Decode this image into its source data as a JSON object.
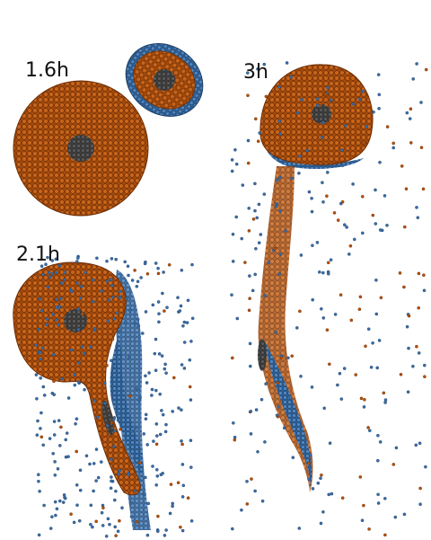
{
  "panels": [
    {
      "label": "1.6h"
    },
    {
      "label": "3h"
    },
    {
      "label": "2.1h"
    }
  ],
  "colors": {
    "mantle": "#b4520d",
    "mantle_edge": "#6b2c04",
    "core": "#4a4a4a",
    "ice": "#3a6ea8",
    "ice_edge": "#1f3f66"
  }
}
